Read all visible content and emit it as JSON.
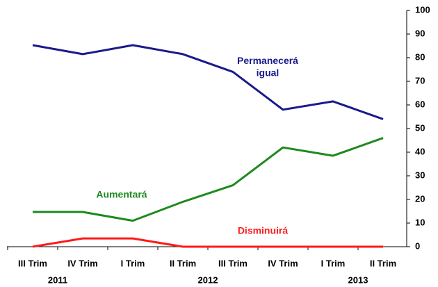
{
  "chart_data": {
    "type": "line",
    "categories": [
      "III Trim",
      "IV Trim",
      "I Trim",
      "II Trim",
      "III Trim",
      "IV Trim",
      "I Trim",
      "II Trim"
    ],
    "years": [
      "2011",
      "2012",
      "2013"
    ],
    "series": [
      {
        "name": "Permanecerá igual",
        "color": "#1a1a8c",
        "values": [
          85.3,
          81.5,
          85.3,
          81.5,
          74,
          58,
          61.5,
          54
        ]
      },
      {
        "name": "Aumentará",
        "color": "#1e8a1e",
        "values": [
          14.7,
          14.7,
          11,
          19,
          26,
          42,
          38.5,
          46
        ]
      },
      {
        "name": "Disminuirá",
        "color": "#ff1a1a",
        "values": [
          0,
          3.5,
          3.5,
          0,
          0,
          0,
          0,
          0
        ]
      }
    ],
    "ylim": [
      0,
      100
    ],
    "yticks": [
      0,
      10,
      20,
      30,
      40,
      50,
      60,
      70,
      80,
      90,
      100
    ],
    "grid": false
  }
}
